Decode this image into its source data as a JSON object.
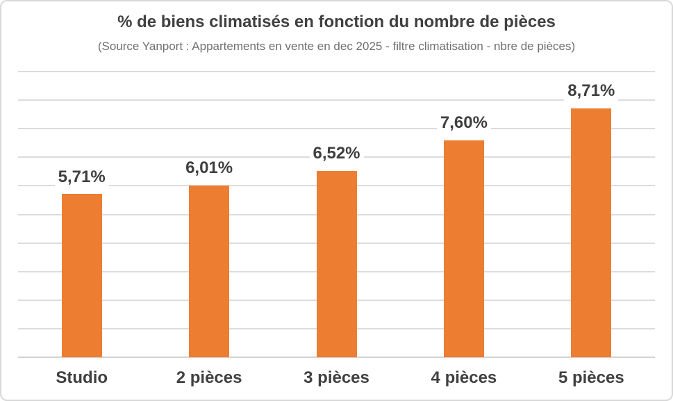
{
  "header": {
    "title": "% de biens climatisés en fonction du nombre de pièces",
    "subtitle": "(Source Yanport : Appartements en vente en dec 2025 - filtre climatisation - nbre de pièces)"
  },
  "chart_data": {
    "type": "bar",
    "title": "% de biens climatisés en fonction du nombre de pièces",
    "subtitle": "(Source Yanport : Appartements en vente en dec 2025 - filtre climatisation - nbre de pièces)",
    "categories": [
      "Studio",
      "2 pièces",
      "3 pièces",
      "4 pièces",
      "5 pièces"
    ],
    "values": [
      5.71,
      6.01,
      6.52,
      7.6,
      8.71
    ],
    "data_labels": [
      "5,71%",
      "6,01%",
      "6,52%",
      "7,60%",
      "8,71%"
    ],
    "xlabel": "",
    "ylabel": "",
    "ylim": [
      0,
      10
    ],
    "gridline_step": 1,
    "grid": true,
    "legend": false,
    "colors": {
      "bar": "#ED7D31",
      "gridline": "#DCDCDC",
      "title_text": "#404040",
      "subtitle_text": "#6F6F6F",
      "label_text": "#3F3F3F",
      "canvas_border": "#D8D8D8"
    }
  }
}
